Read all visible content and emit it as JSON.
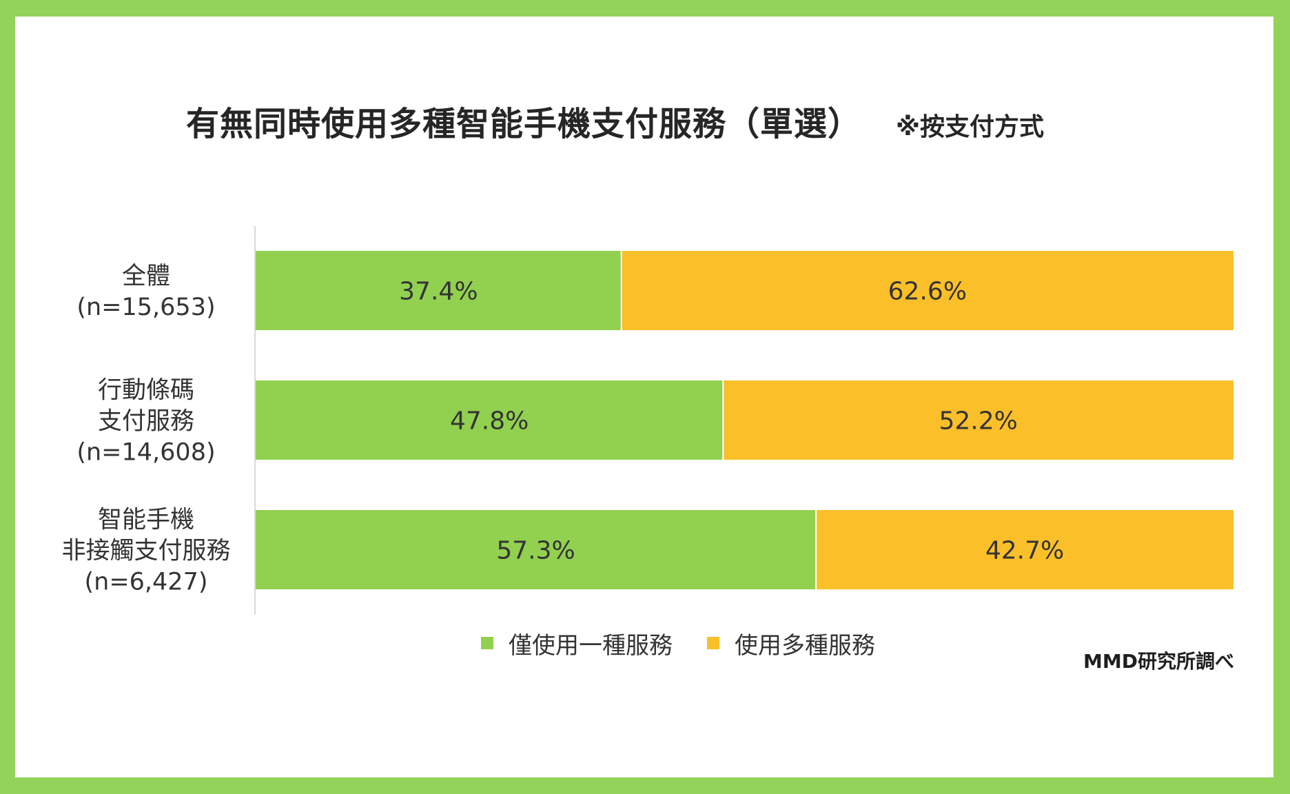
{
  "chart_data": {
    "type": "bar",
    "orientation": "horizontal",
    "stacked": true,
    "percent_stacked": true,
    "title": "有無同時使用多種智能手機支付服務（單選）",
    "subtitle": "※按支付方式",
    "source": "MMD研究所調べ",
    "categories": [
      [
        "全體",
        "(n=15,653)"
      ],
      [
        "行動條碼",
        "支付服務",
        "(n=14,608)"
      ],
      [
        "智能手機",
        "非接觸支付服務",
        "(n=6,427)"
      ]
    ],
    "series": [
      {
        "name": "僅使用一種服務",
        "color": "#92d050",
        "values": [
          37.4,
          47.8,
          57.3
        ],
        "labels": [
          "37.4%",
          "47.8%",
          "57.3%"
        ]
      },
      {
        "name": "使用多種服務",
        "color": "#fbbf2a",
        "values": [
          62.6,
          52.2,
          42.7
        ],
        "labels": [
          "62.6%",
          "52.2%",
          "42.7%"
        ]
      }
    ],
    "xlim": [
      0,
      100
    ],
    "legend": "bottom",
    "grid": false
  }
}
